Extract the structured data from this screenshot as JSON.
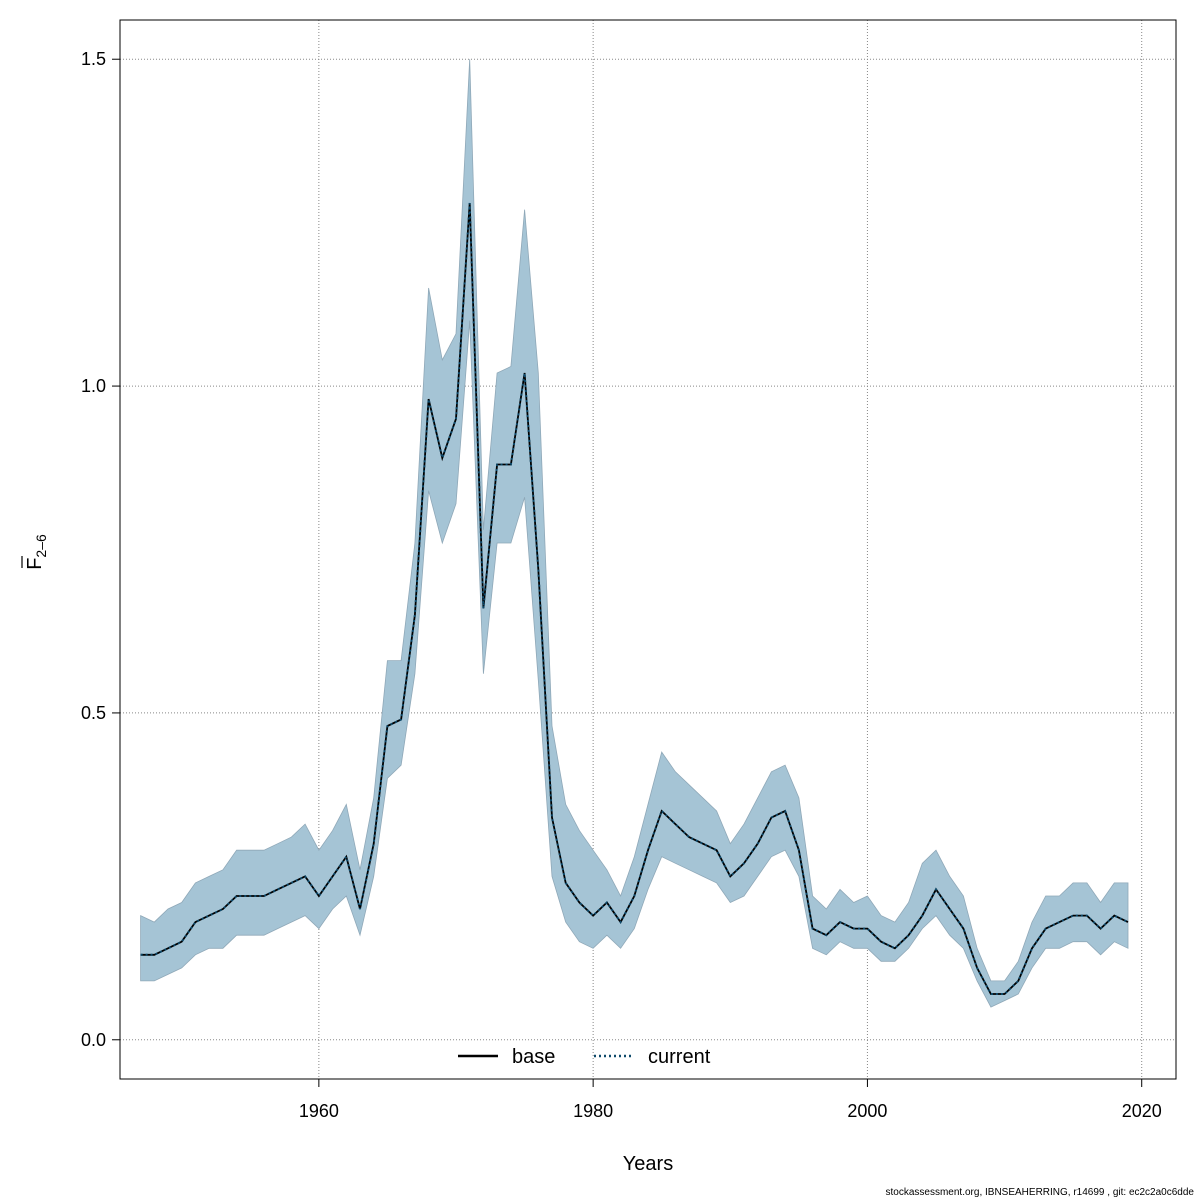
{
  "footer_text": "stockassessment.org, IBNSEAHERRING, r14699 , git: ec2c2a0c6dde",
  "chart_data": {
    "type": "line",
    "xlabel": "Years",
    "ylabel_main": "F",
    "ylabel_sub": "2–6",
    "xlim": [
      1945.5,
      2022.5
    ],
    "ylim": [
      -0.06,
      1.56
    ],
    "xticks": [
      1960,
      1980,
      2000,
      2020
    ],
    "yticks": [
      0.0,
      0.5,
      1.0,
      1.5
    ],
    "xtick_labels": [
      "1960",
      "1980",
      "2000",
      "2020"
    ],
    "ytick_labels": [
      "0.0",
      "0.5",
      "1.0",
      "1.5"
    ],
    "grid": true,
    "legend_position": "bottom-center",
    "colors": {
      "band": "#a5c4d5",
      "band_edge": "#8fa8b8",
      "base": "#000000",
      "current": "#0e4a6b"
    },
    "x": [
      1947,
      1948,
      1949,
      1950,
      1951,
      1952,
      1953,
      1954,
      1955,
      1956,
      1957,
      1958,
      1959,
      1960,
      1961,
      1962,
      1963,
      1964,
      1965,
      1966,
      1967,
      1968,
      1969,
      1970,
      1971,
      1972,
      1973,
      1974,
      1975,
      1976,
      1977,
      1978,
      1979,
      1980,
      1981,
      1982,
      1983,
      1984,
      1985,
      1986,
      1987,
      1988,
      1989,
      1990,
      1991,
      1992,
      1993,
      1994,
      1995,
      1996,
      1997,
      1998,
      1999,
      2000,
      2001,
      2002,
      2003,
      2004,
      2005,
      2006,
      2007,
      2008,
      2009,
      2010,
      2011,
      2012,
      2013,
      2014,
      2015,
      2016,
      2017,
      2018,
      2019
    ],
    "series": [
      {
        "name": "base",
        "style": "solid",
        "values": [
          0.13,
          0.13,
          0.14,
          0.15,
          0.18,
          0.19,
          0.2,
          0.22,
          0.22,
          0.22,
          0.23,
          0.24,
          0.25,
          0.22,
          0.25,
          0.28,
          0.2,
          0.3,
          0.48,
          0.49,
          0.65,
          0.98,
          0.89,
          0.95,
          1.28,
          0.66,
          0.88,
          0.88,
          1.02,
          0.72,
          0.34,
          0.24,
          0.21,
          0.19,
          0.21,
          0.18,
          0.22,
          0.29,
          0.35,
          0.33,
          0.31,
          0.3,
          0.29,
          0.25,
          0.27,
          0.3,
          0.34,
          0.35,
          0.29,
          0.17,
          0.16,
          0.18,
          0.17,
          0.17,
          0.15,
          0.14,
          0.16,
          0.19,
          0.23,
          0.2,
          0.17,
          0.11,
          0.07,
          0.07,
          0.09,
          0.14,
          0.17,
          0.18,
          0.19,
          0.19,
          0.17,
          0.19,
          0.18
        ]
      },
      {
        "name": "current",
        "style": "dotted",
        "values": [
          0.13,
          0.13,
          0.14,
          0.15,
          0.18,
          0.19,
          0.2,
          0.22,
          0.22,
          0.22,
          0.23,
          0.24,
          0.25,
          0.22,
          0.25,
          0.28,
          0.2,
          0.3,
          0.48,
          0.49,
          0.65,
          0.98,
          0.89,
          0.95,
          1.28,
          0.66,
          0.88,
          0.88,
          1.02,
          0.72,
          0.34,
          0.24,
          0.21,
          0.19,
          0.21,
          0.18,
          0.22,
          0.29,
          0.35,
          0.33,
          0.31,
          0.3,
          0.29,
          0.25,
          0.27,
          0.3,
          0.34,
          0.35,
          0.29,
          0.17,
          0.16,
          0.18,
          0.17,
          0.17,
          0.15,
          0.14,
          0.16,
          0.19,
          0.23,
          0.2,
          0.17,
          0.11,
          0.07,
          0.07,
          0.09,
          0.14,
          0.17,
          0.18,
          0.19,
          0.19,
          0.17,
          0.19,
          0.18
        ]
      }
    ],
    "ci_upper": [
      0.19,
      0.18,
      0.2,
      0.21,
      0.24,
      0.25,
      0.26,
      0.29,
      0.29,
      0.29,
      0.3,
      0.31,
      0.33,
      0.29,
      0.32,
      0.36,
      0.26,
      0.37,
      0.58,
      0.58,
      0.76,
      1.15,
      1.04,
      1.08,
      1.5,
      0.78,
      1.02,
      1.03,
      1.27,
      1.02,
      0.48,
      0.36,
      0.32,
      0.29,
      0.26,
      0.22,
      0.28,
      0.36,
      0.44,
      0.41,
      0.39,
      0.37,
      0.35,
      0.3,
      0.33,
      0.37,
      0.41,
      0.42,
      0.37,
      0.22,
      0.2,
      0.23,
      0.21,
      0.22,
      0.19,
      0.18,
      0.21,
      0.27,
      0.29,
      0.25,
      0.22,
      0.14,
      0.09,
      0.09,
      0.12,
      0.18,
      0.22,
      0.22,
      0.24,
      0.24,
      0.21,
      0.24,
      0.24
    ],
    "ci_lower": [
      0.09,
      0.09,
      0.1,
      0.11,
      0.13,
      0.14,
      0.14,
      0.16,
      0.16,
      0.16,
      0.17,
      0.18,
      0.19,
      0.17,
      0.2,
      0.22,
      0.16,
      0.25,
      0.4,
      0.42,
      0.56,
      0.84,
      0.76,
      0.82,
      1.1,
      0.56,
      0.76,
      0.76,
      0.83,
      0.55,
      0.25,
      0.18,
      0.15,
      0.14,
      0.16,
      0.14,
      0.17,
      0.23,
      0.28,
      0.27,
      0.26,
      0.25,
      0.24,
      0.21,
      0.22,
      0.25,
      0.28,
      0.29,
      0.25,
      0.14,
      0.13,
      0.15,
      0.14,
      0.14,
      0.12,
      0.12,
      0.14,
      0.17,
      0.19,
      0.16,
      0.14,
      0.09,
      0.05,
      0.06,
      0.07,
      0.11,
      0.14,
      0.14,
      0.15,
      0.15,
      0.13,
      0.15,
      0.14
    ]
  }
}
